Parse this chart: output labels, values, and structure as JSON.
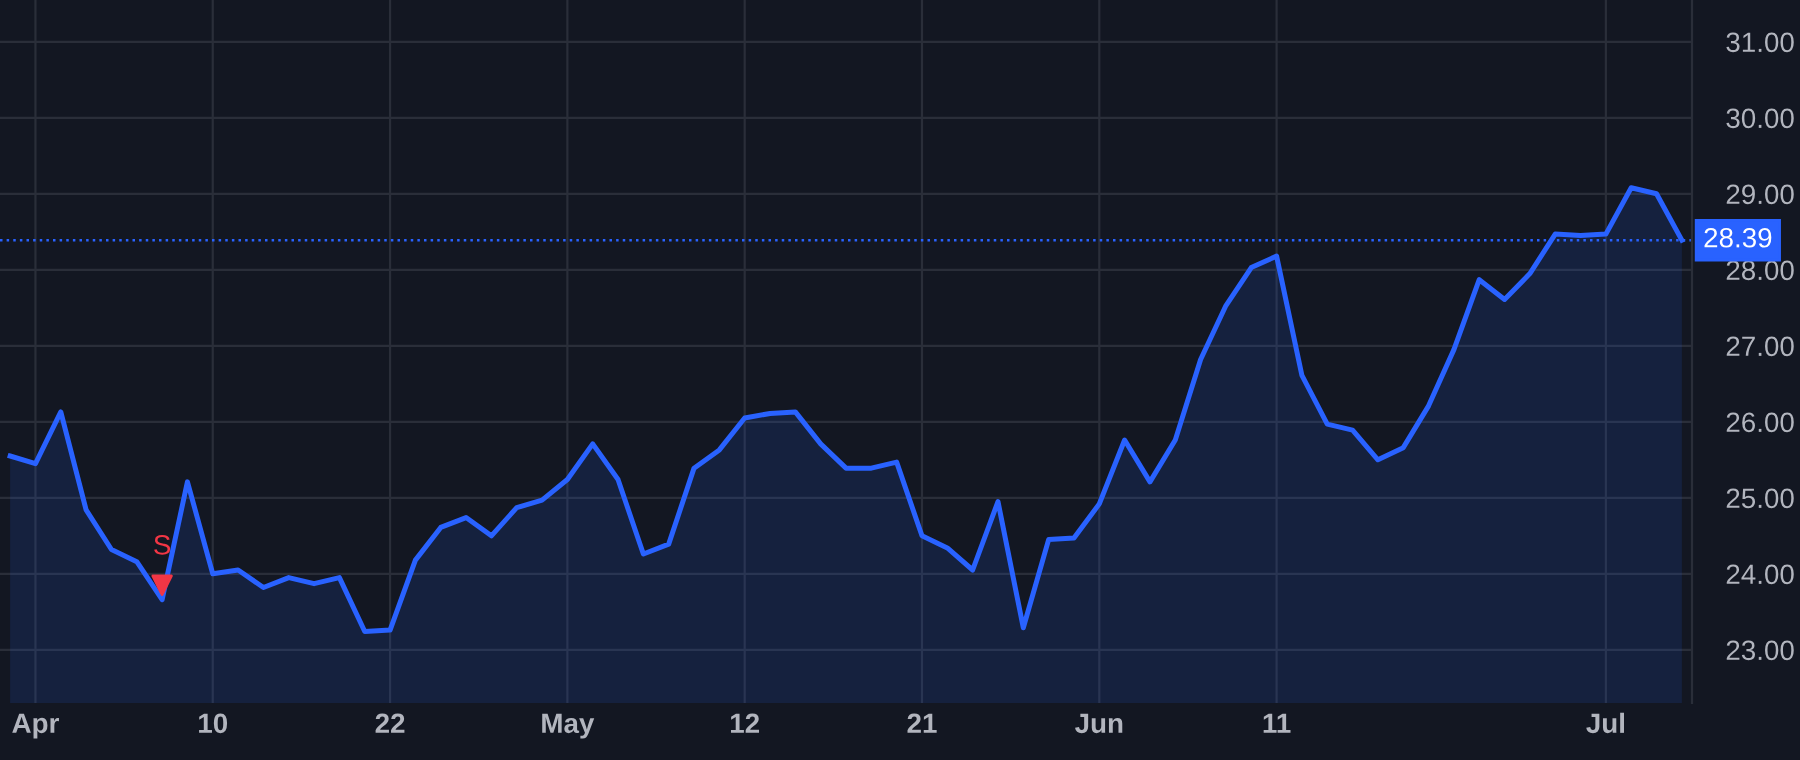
{
  "chart_data": {
    "type": "area",
    "categories": [
      null,
      "Apr",
      null,
      null,
      null,
      null,
      null,
      null,
      "10",
      null,
      null,
      null,
      null,
      null,
      null,
      "22",
      null,
      null,
      null,
      null,
      null,
      null,
      "May",
      null,
      null,
      null,
      null,
      null,
      null,
      "12",
      null,
      null,
      null,
      null,
      null,
      null,
      "21",
      null,
      null,
      null,
      null,
      null,
      null,
      "Jun",
      null,
      null,
      null,
      null,
      null,
      null,
      "11",
      null,
      null,
      null,
      null,
      null,
      null,
      null,
      null,
      null,
      null,
      null,
      null,
      "Jul",
      null,
      null,
      null
    ],
    "series": [
      {
        "color": "#2962ff",
        "values": [
          25.55,
          25.45,
          26.13,
          24.84,
          24.32,
          24.16,
          23.66,
          25.21,
          24.0,
          24.05,
          23.82,
          23.95,
          23.87,
          23.95,
          23.24,
          23.26,
          24.18,
          24.61,
          24.74,
          24.5,
          24.87,
          24.97,
          25.24,
          25.71,
          25.24,
          24.26,
          24.39,
          25.39,
          25.63,
          26.05,
          26.11,
          26.13,
          25.71,
          25.39,
          25.39,
          25.47,
          24.5,
          24.34,
          24.05,
          24.95,
          23.29,
          24.45,
          24.47,
          24.92,
          25.76,
          25.21,
          25.76,
          26.82,
          27.53,
          28.03,
          28.18,
          26.61,
          25.97,
          25.89,
          25.5,
          25.66,
          26.21,
          26.95,
          27.87,
          27.61,
          27.95,
          28.47,
          28.45,
          28.47,
          29.08,
          29.0,
          28.39
        ]
      },
      {
        "type": "scatter",
        "name": "S",
        "color": "#f23645",
        "marker": "triangle",
        "values": [
          null,
          null,
          null,
          null,
          null,
          null,
          23.85,
          null,
          null,
          null,
          null,
          null,
          null,
          null,
          null,
          null,
          null,
          null,
          null,
          null,
          null,
          null,
          null,
          null,
          null,
          null,
          null,
          null,
          null,
          null,
          null,
          null,
          null,
          null,
          null,
          null,
          null,
          null,
          null,
          null,
          null,
          null,
          null,
          null,
          null,
          null,
          null,
          null,
          null,
          null,
          null,
          null,
          null,
          null,
          null,
          null,
          null,
          null,
          null,
          null,
          null,
          null,
          null,
          null,
          null,
          null,
          null
        ]
      }
    ],
    "ylim": [
      22.3,
      31.55
    ],
    "yticks": [
      {
        "value": 23,
        "label": "23.00"
      },
      {
        "value": 24,
        "label": "24.00"
      },
      {
        "value": 25,
        "label": "25.00"
      },
      {
        "value": 26,
        "label": "26.00"
      },
      {
        "value": 27,
        "label": "27.00"
      },
      {
        "value": 28,
        "label": "28.00"
      },
      {
        "value": 29,
        "label": "29.00"
      },
      {
        "value": 30,
        "label": "30.00"
      },
      {
        "value": 31,
        "label": "31.00"
      }
    ],
    "ref_lines": [
      {
        "axis": "y",
        "value": 28.39,
        "label": "28.39",
        "color": "#2962ff",
        "line_style": "dotted"
      }
    ],
    "grid": true,
    "legend": false
  }
}
